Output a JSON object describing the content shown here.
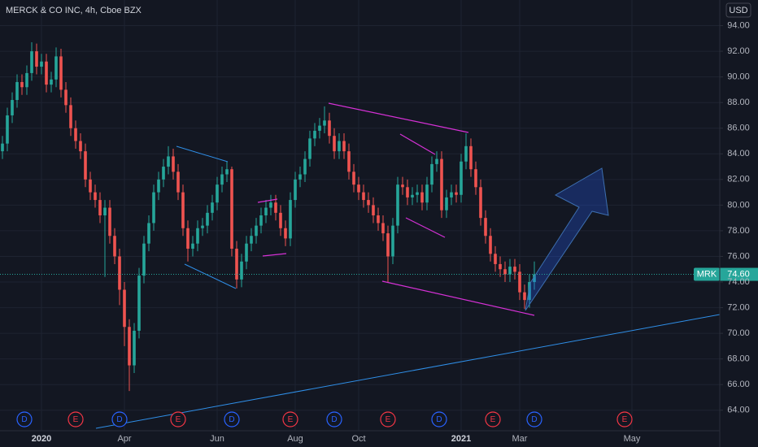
{
  "chart_data": {
    "type": "candlestick",
    "title": "MERCK & CO INC, 4h, Cboe BZX",
    "currency": "USD",
    "series": [
      {
        "name": "MRK",
        "open": [
          84.2,
          84.8,
          87.0,
          88.2,
          89.6,
          89.2,
          90.3,
          92.0,
          90.8,
          91.2,
          89.4,
          89.8,
          91.6,
          89.0,
          87.8,
          86.0,
          85.0,
          84.2,
          82.0,
          81.0,
          80.4,
          79.2,
          79.8,
          77.6,
          76.0,
          73.4,
          70.5,
          67.5,
          70.2,
          74.5,
          77.0,
          78.6,
          81.0,
          82.0,
          83.0,
          83.8,
          82.6,
          81.0,
          78.2,
          76.6,
          77.0,
          78.2,
          78.4,
          79.4,
          80.2,
          81.6,
          82.4,
          82.8,
          76.6,
          74.2,
          75.6,
          77.0,
          77.6,
          78.4,
          79.2,
          79.8,
          80.2,
          79.4,
          78.2,
          77.4,
          80.4,
          82.0,
          82.4,
          83.6,
          85.2,
          85.8,
          86.2,
          86.6,
          85.4,
          84.2,
          85.0,
          84.2,
          82.6,
          81.6,
          81.0,
          80.4,
          80.0,
          79.2,
          78.6,
          77.8,
          76.0,
          78.4,
          81.6,
          81.4,
          80.6,
          80.8,
          81.0,
          80.2,
          81.6,
          83.2,
          83.6,
          79.6,
          80.6,
          81.0,
          80.8,
          83.4,
          84.6,
          82.8,
          81.4,
          79.0,
          77.6,
          76.2,
          75.4,
          75.0,
          74.6,
          75.2,
          74.8,
          73.2,
          72.6,
          74.0
        ],
        "high": [
          85.4,
          87.6,
          88.8,
          90.2,
          90.2,
          90.9,
          92.7,
          92.6,
          91.8,
          91.8,
          90.4,
          92.3,
          92.2,
          89.6,
          88.4,
          86.6,
          85.6,
          84.8,
          82.6,
          81.6,
          81.0,
          80.4,
          80.4,
          78.2,
          76.6,
          74.0,
          71.1,
          70.8,
          75.1,
          77.6,
          79.2,
          81.6,
          82.6,
          83.6,
          84.6,
          84.4,
          83.2,
          81.6,
          78.8,
          77.6,
          78.8,
          79.0,
          80.0,
          80.8,
          82.2,
          83.0,
          83.4,
          83.0,
          77.2,
          76.2,
          77.6,
          78.2,
          79.0,
          79.8,
          80.4,
          80.8,
          80.8,
          80.0,
          78.8,
          81.0,
          82.6,
          83.0,
          84.2,
          85.8,
          86.4,
          86.8,
          87.7,
          87.2,
          86.0,
          85.6,
          85.6,
          84.8,
          83.2,
          82.2,
          81.6,
          81.0,
          80.6,
          79.8,
          79.2,
          78.4,
          79.0,
          82.2,
          82.2,
          82.0,
          81.4,
          81.6,
          81.6,
          82.2,
          83.8,
          84.2,
          84.2,
          81.2,
          81.6,
          81.6,
          84.0,
          85.6,
          85.2,
          83.4,
          82.0,
          79.6,
          78.2,
          76.8,
          76.0,
          75.6,
          75.8,
          75.8,
          75.4,
          73.8,
          74.6,
          75.6
        ],
        "low": [
          83.6,
          84.2,
          86.4,
          87.6,
          88.6,
          88.6,
          89.7,
          90.2,
          90.2,
          88.8,
          88.8,
          89.2,
          88.4,
          87.2,
          85.4,
          84.4,
          83.6,
          81.4,
          80.4,
          79.8,
          78.6,
          74.4,
          77.0,
          75.4,
          72.2,
          69.0,
          65.5,
          66.9,
          69.6,
          73.9,
          76.4,
          78.0,
          80.4,
          81.4,
          82.4,
          82.0,
          80.4,
          77.6,
          75.6,
          76.0,
          76.4,
          77.6,
          77.8,
          78.8,
          79.6,
          81.0,
          81.8,
          76.0,
          73.5,
          73.6,
          75.0,
          76.4,
          77.0,
          77.8,
          78.6,
          79.2,
          78.8,
          77.6,
          76.8,
          76.8,
          79.8,
          81.4,
          81.8,
          83.0,
          84.6,
          85.2,
          85.6,
          84.8,
          83.6,
          83.6,
          83.6,
          82.0,
          81.0,
          80.4,
          79.8,
          79.4,
          78.6,
          78.0,
          77.2,
          74.0,
          75.4,
          77.8,
          80.8,
          80.0,
          80.0,
          80.2,
          79.6,
          79.6,
          81.0,
          82.6,
          79.0,
          79.0,
          80.0,
          80.2,
          80.2,
          82.8,
          82.2,
          80.8,
          78.4,
          77.0,
          75.6,
          74.8,
          74.4,
          74.0,
          74.0,
          74.2,
          72.6,
          71.9,
          72.0,
          73.4
        ],
        "close": [
          84.8,
          87.0,
          88.2,
          89.6,
          89.2,
          90.3,
          92.0,
          90.8,
          91.2,
          89.4,
          89.8,
          91.6,
          89.0,
          87.8,
          86.0,
          85.0,
          84.2,
          82.0,
          81.0,
          80.4,
          79.2,
          79.8,
          77.6,
          76.0,
          73.4,
          70.5,
          67.5,
          70.2,
          74.5,
          77.0,
          78.6,
          81.0,
          82.0,
          83.0,
          83.8,
          82.6,
          81.0,
          78.2,
          76.6,
          77.0,
          78.2,
          78.4,
          79.4,
          80.2,
          81.6,
          82.4,
          82.8,
          76.6,
          74.2,
          75.6,
          77.0,
          77.6,
          78.4,
          79.2,
          79.8,
          80.2,
          79.4,
          78.2,
          77.4,
          80.4,
          82.0,
          82.4,
          83.6,
          85.2,
          85.8,
          86.2,
          86.6,
          85.4,
          84.2,
          85.0,
          84.2,
          82.6,
          81.6,
          81.0,
          80.4,
          80.0,
          79.2,
          78.6,
          77.8,
          76.0,
          78.4,
          81.6,
          81.4,
          80.6,
          80.8,
          81.0,
          80.2,
          81.6,
          83.2,
          83.6,
          79.6,
          80.6,
          81.0,
          80.8,
          83.4,
          84.6,
          82.8,
          81.4,
          79.0,
          77.6,
          76.2,
          75.4,
          75.0,
          74.6,
          75.2,
          74.8,
          73.2,
          72.6,
          74.0,
          74.6
        ],
        "up_color": "#26a69a",
        "down_color": "#ef5350"
      }
    ],
    "last_price": {
      "value": 74.6,
      "label": "74.60"
    },
    "last_price_color": "#26a69a",
    "xlim": [
      -0.5,
      147
    ],
    "xticks": [
      {
        "value": 8,
        "label": "2020"
      },
      {
        "value": 25,
        "label": "Apr"
      },
      {
        "value": 44,
        "label": "Jun"
      },
      {
        "value": 60,
        "label": "Aug"
      },
      {
        "value": 73,
        "label": "Oct"
      },
      {
        "value": 94,
        "label": "2021"
      },
      {
        "value": 106,
        "label": "Mar"
      },
      {
        "value": 129,
        "label": "May"
      }
    ],
    "ylim": [
      62.4,
      96.0
    ],
    "yticks": [
      {
        "value": 64,
        "label": "64.00"
      },
      {
        "value": 66,
        "label": "66.00"
      },
      {
        "value": 68,
        "label": "68.00"
      },
      {
        "value": 70,
        "label": "70.00"
      },
      {
        "value": 72,
        "label": "72.00"
      },
      {
        "value": 74,
        "label": "74.00"
      },
      {
        "value": 76,
        "label": "76.00"
      },
      {
        "value": 78,
        "label": "78.00"
      },
      {
        "value": 80,
        "label": "80.00"
      },
      {
        "value": 82,
        "label": "82.00"
      },
      {
        "value": 84,
        "label": "84.00"
      },
      {
        "value": 86,
        "label": "86.00"
      },
      {
        "value": 88,
        "label": "88.00"
      },
      {
        "value": 90,
        "label": "90.00"
      },
      {
        "value": 92,
        "label": "92.00"
      },
      {
        "value": 94,
        "label": "94.00"
      }
    ],
    "grid": true,
    "events": [
      {
        "label": "D",
        "x": 4.5,
        "color": "#2962ff"
      },
      {
        "label": "E",
        "x": 15,
        "color": "#f23645"
      },
      {
        "label": "D",
        "x": 24,
        "color": "#2962ff"
      },
      {
        "label": "E",
        "x": 36,
        "color": "#f23645"
      },
      {
        "label": "D",
        "x": 47,
        "color": "#2962ff"
      },
      {
        "label": "E",
        "x": 59,
        "color": "#f23645"
      },
      {
        "label": "D",
        "x": 68,
        "color": "#2962ff"
      },
      {
        "label": "E",
        "x": 79,
        "color": "#f23645"
      },
      {
        "label": "D",
        "x": 89.5,
        "color": "#2962ff"
      },
      {
        "label": "E",
        "x": 100.5,
        "color": "#f23645"
      },
      {
        "label": "D",
        "x": 109,
        "color": "#2962ff"
      },
      {
        "label": "E",
        "x": 127.5,
        "color": "#f23645"
      }
    ]
  }
}
